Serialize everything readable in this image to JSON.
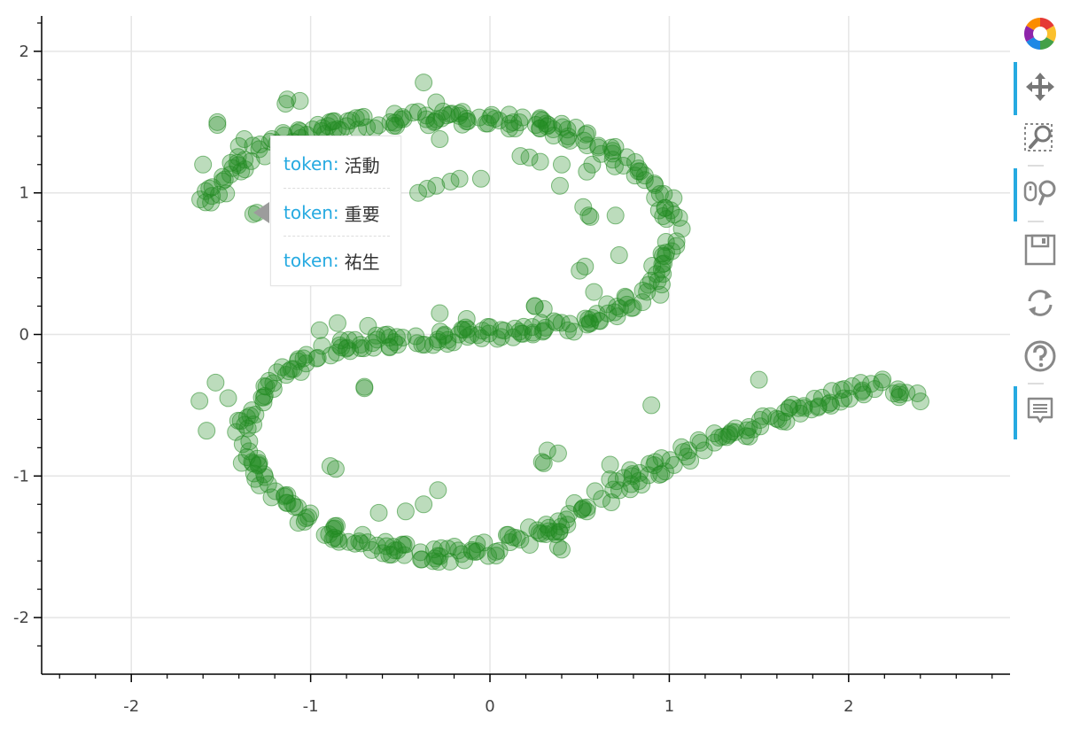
{
  "chart_data": {
    "type": "scatter",
    "title": "",
    "xlabel": "",
    "ylabel": "",
    "xlim": [
      -2.5,
      2.9
    ],
    "ylim": [
      -2.4,
      2.25
    ],
    "x_ticks": [
      -2,
      -1,
      0,
      1,
      2
    ],
    "y_ticks": [
      -2,
      -1,
      0,
      1,
      2
    ],
    "x_tick_labels": [
      "-2",
      "-1",
      "0",
      "1",
      "2"
    ],
    "y_tick_labels": [
      "-2",
      "-1",
      "0",
      "1",
      "2"
    ],
    "grid": true,
    "marker_color": "#228b22",
    "marker_alpha": 0.3,
    "outline_points": [
      [
        -1.64,
        0.9
      ],
      [
        -1.57,
        0.96
      ],
      [
        -1.5,
        1.05
      ],
      [
        -1.43,
        1.15
      ],
      [
        -1.38,
        1.22
      ],
      [
        -1.32,
        1.28
      ],
      [
        -1.25,
        1.33
      ],
      [
        -1.18,
        1.38
      ],
      [
        -1.05,
        1.42
      ],
      [
        -0.9,
        1.45
      ],
      [
        -0.75,
        1.48
      ],
      [
        -0.6,
        1.5
      ],
      [
        -0.45,
        1.52
      ],
      [
        -0.3,
        1.53
      ],
      [
        -0.15,
        1.53
      ],
      [
        0.0,
        1.52
      ],
      [
        0.15,
        1.5
      ],
      [
        0.3,
        1.47
      ],
      [
        0.45,
        1.43
      ],
      [
        0.58,
        1.37
      ],
      [
        0.7,
        1.28
      ],
      [
        0.8,
        1.18
      ],
      [
        0.9,
        1.05
      ],
      [
        0.98,
        0.9
      ],
      [
        1.02,
        0.75
      ],
      [
        1.0,
        0.6
      ],
      [
        0.95,
        0.45
      ],
      [
        0.87,
        0.33
      ],
      [
        0.78,
        0.23
      ],
      [
        0.68,
        0.15
      ],
      [
        0.55,
        0.08
      ],
      [
        0.4,
        0.04
      ],
      [
        0.25,
        0.02
      ],
      [
        0.1,
        0.01
      ],
      [
        -0.05,
        0.0
      ],
      [
        -0.2,
        -0.01
      ],
      [
        -0.35,
        -0.02
      ],
      [
        -0.5,
        -0.03
      ],
      [
        -0.65,
        -0.05
      ],
      [
        -0.8,
        -0.08
      ],
      [
        -0.95,
        -0.14
      ],
      [
        -1.08,
        -0.22
      ],
      [
        -1.2,
        -0.32
      ],
      [
        -1.3,
        -0.44
      ],
      [
        -1.36,
        -0.58
      ],
      [
        -1.37,
        -0.72
      ],
      [
        -1.34,
        -0.86
      ],
      [
        -1.28,
        -1.0
      ],
      [
        -1.2,
        -1.12
      ],
      [
        -1.1,
        -1.23
      ],
      [
        -0.98,
        -1.32
      ],
      [
        -0.85,
        -1.4
      ],
      [
        -0.7,
        -1.47
      ],
      [
        -0.55,
        -1.52
      ],
      [
        -0.4,
        -1.55
      ],
      [
        -0.25,
        -1.56
      ],
      [
        -0.1,
        -1.54
      ],
      [
        0.05,
        -1.5
      ],
      [
        0.2,
        -1.44
      ],
      [
        0.35,
        -1.36
      ],
      [
        0.5,
        -1.26
      ],
      [
        0.62,
        -1.15
      ],
      [
        0.75,
        -1.05
      ],
      [
        0.9,
        -0.95
      ],
      [
        1.05,
        -0.86
      ],
      [
        1.2,
        -0.78
      ],
      [
        1.35,
        -0.7
      ],
      [
        1.5,
        -0.63
      ],
      [
        1.65,
        -0.56
      ],
      [
        1.8,
        -0.5
      ],
      [
        1.95,
        -0.44
      ],
      [
        2.1,
        -0.38
      ],
      [
        2.22,
        -0.37
      ],
      [
        2.32,
        -0.4
      ],
      [
        2.37,
        -0.43
      ]
    ],
    "extra_points": [
      [
        -1.52,
        1.5
      ],
      [
        -1.52,
        1.48
      ],
      [
        -1.14,
        1.63
      ],
      [
        -1.13,
        1.66
      ],
      [
        -1.06,
        1.65
      ],
      [
        -0.37,
        1.78
      ],
      [
        -0.3,
        1.64
      ],
      [
        -0.28,
        1.38
      ],
      [
        0.17,
        1.26
      ],
      [
        0.22,
        1.25
      ],
      [
        0.28,
        1.22
      ],
      [
        0.4,
        1.2
      ],
      [
        0.39,
        1.05
      ],
      [
        0.54,
        1.15
      ],
      [
        0.57,
        1.2
      ],
      [
        0.52,
        0.9
      ],
      [
        0.55,
        0.84
      ],
      [
        0.56,
        0.83
      ],
      [
        0.7,
        0.84
      ],
      [
        0.72,
        0.56
      ],
      [
        0.5,
        0.45
      ],
      [
        0.53,
        0.48
      ],
      [
        0.58,
        0.3
      ],
      [
        0.95,
        0.28
      ],
      [
        0.25,
        0.2
      ],
      [
        -0.05,
        1.1
      ],
      [
        -0.17,
        1.1
      ],
      [
        -0.22,
        1.08
      ],
      [
        -0.3,
        1.05
      ],
      [
        -0.35,
        1.03
      ],
      [
        -0.4,
        1.0
      ],
      [
        -1.32,
        0.85
      ],
      [
        -1.3,
        0.86
      ],
      [
        -1.37,
        1.38
      ],
      [
        -1.4,
        1.33
      ],
      [
        -1.6,
        1.2
      ],
      [
        -0.7,
        -0.38
      ],
      [
        -0.7,
        -0.37
      ],
      [
        -0.89,
        -0.93
      ],
      [
        -0.86,
        -0.95
      ],
      [
        -0.62,
        -1.26
      ],
      [
        -0.47,
        -1.25
      ],
      [
        -0.37,
        -1.2
      ],
      [
        -0.29,
        -1.1
      ],
      [
        0.29,
        -0.9
      ],
      [
        0.3,
        -0.91
      ],
      [
        0.32,
        -0.82
      ],
      [
        0.38,
        -0.84
      ],
      [
        0.4,
        -1.52
      ],
      [
        0.38,
        -1.5
      ],
      [
        0.67,
        -0.92
      ],
      [
        0.9,
        -0.5
      ],
      [
        1.5,
        -0.32
      ],
      [
        -1.53,
        -0.34
      ],
      [
        -1.58,
        -0.68
      ],
      [
        -1.62,
        -0.47
      ],
      [
        -1.46,
        -0.45
      ],
      [
        -0.95,
        0.03
      ],
      [
        -0.85,
        0.08
      ],
      [
        -0.68,
        0.06
      ],
      [
        -0.28,
        0.15
      ],
      [
        -0.13,
        0.11
      ],
      [
        0.25,
        0.2
      ],
      [
        0.3,
        0.18
      ]
    ]
  },
  "tooltip": {
    "rows": [
      {
        "key": "token:",
        "value": "活動"
      },
      {
        "key": "token:",
        "value": "重要"
      },
      {
        "key": "token:",
        "value": "祐生"
      }
    ]
  },
  "toolbar": {
    "tools": [
      {
        "icon": "bokeh-logo-icon",
        "active": false
      },
      {
        "icon": "pan-icon",
        "active": true
      },
      {
        "icon": "box-zoom-icon",
        "active": false
      },
      {
        "icon": "wheel-zoom-icon",
        "active": true
      },
      {
        "icon": "save-icon",
        "active": false
      },
      {
        "icon": "reset-icon",
        "active": false
      },
      {
        "icon": "help-icon",
        "active": false
      },
      {
        "icon": "hover-icon",
        "active": true
      }
    ]
  }
}
